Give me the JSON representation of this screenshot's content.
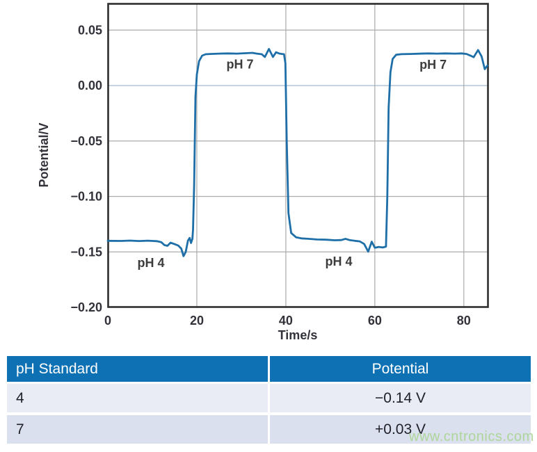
{
  "chart_data": {
    "type": "line",
    "title": "",
    "xlabel": "Time/s",
    "ylabel": "Potential/V",
    "xlim": [
      0,
      85.5
    ],
    "ylim": [
      -0.2,
      0.074
    ],
    "grid": true,
    "legend": "none",
    "x_ticks": [
      {
        "value": 0,
        "label": "0"
      },
      {
        "value": 20,
        "label": "20"
      },
      {
        "value": 40,
        "label": "40"
      },
      {
        "value": 60,
        "label": "60"
      },
      {
        "value": 80,
        "label": "80"
      }
    ],
    "y_ticks": [
      {
        "value": 0.05,
        "label": "0.05"
      },
      {
        "value": 0.0,
        "label": "0.00"
      },
      {
        "value": -0.05,
        "label": "−0.05"
      },
      {
        "value": -0.1,
        "label": "−0.10"
      },
      {
        "value": -0.15,
        "label": "−0.15"
      },
      {
        "value": -0.2,
        "label": "−0.20"
      }
    ],
    "series": [
      {
        "name": "electrode-potential",
        "color": "#1e6fa8",
        "points": [
          [
            0,
            -0.14
          ],
          [
            3,
            -0.1401
          ],
          [
            5,
            -0.1398
          ],
          [
            7,
            -0.1402
          ],
          [
            9,
            -0.1399
          ],
          [
            11,
            -0.1403
          ],
          [
            12,
            -0.1412
          ],
          [
            12.7,
            -0.1438
          ],
          [
            13.4,
            -0.1445
          ],
          [
            14.1,
            -0.1417
          ],
          [
            15.0,
            -0.143
          ],
          [
            15.8,
            -0.1442
          ],
          [
            16.5,
            -0.147
          ],
          [
            17.0,
            -0.1538
          ],
          [
            17.5,
            -0.15
          ],
          [
            18.0,
            -0.1398
          ],
          [
            18.4,
            -0.1374
          ],
          [
            18.7,
            -0.142
          ],
          [
            19.0,
            -0.1382
          ],
          [
            19.15,
            -0.13
          ],
          [
            19.4,
            -0.09
          ],
          [
            19.7,
            -0.01
          ],
          [
            20.0,
            0.01
          ],
          [
            20.5,
            0.022
          ],
          [
            21.2,
            0.027
          ],
          [
            22.0,
            0.0282
          ],
          [
            23,
            0.0285
          ],
          [
            25,
            0.0288
          ],
          [
            27,
            0.029
          ],
          [
            29,
            0.0288
          ],
          [
            31,
            0.0292
          ],
          [
            32.5,
            0.0295
          ],
          [
            33.5,
            0.0288
          ],
          [
            34.6,
            0.0282
          ],
          [
            35.3,
            0.0258
          ],
          [
            36.2,
            0.033
          ],
          [
            37.1,
            0.0258
          ],
          [
            37.8,
            0.03
          ],
          [
            38.6,
            0.0288
          ],
          [
            39.6,
            0.0282
          ],
          [
            39.9,
            0.02
          ],
          [
            40.2,
            -0.05
          ],
          [
            40.6,
            -0.115
          ],
          [
            41.2,
            -0.133
          ],
          [
            42.3,
            -0.1368
          ],
          [
            43.5,
            -0.1378
          ],
          [
            45,
            -0.1382
          ],
          [
            47,
            -0.1388
          ],
          [
            49,
            -0.139
          ],
          [
            51,
            -0.1395
          ],
          [
            52.5,
            -0.1393
          ],
          [
            53.4,
            -0.1382
          ],
          [
            54.3,
            -0.1393
          ],
          [
            55.5,
            -0.14
          ],
          [
            56.6,
            -0.1405
          ],
          [
            57.6,
            -0.1428
          ],
          [
            58.5,
            -0.1498
          ],
          [
            59.3,
            -0.1408
          ],
          [
            60.0,
            -0.1462
          ],
          [
            60.9,
            -0.1455
          ],
          [
            61.8,
            -0.146
          ],
          [
            62.5,
            -0.1452
          ],
          [
            62.8,
            -0.1
          ],
          [
            63.1,
            -0.02
          ],
          [
            63.5,
            0.012
          ],
          [
            64.0,
            0.024
          ],
          [
            64.8,
            0.0278
          ],
          [
            66,
            0.0283
          ],
          [
            68,
            0.0285
          ],
          [
            70,
            0.0287
          ],
          [
            72,
            0.029
          ],
          [
            74,
            0.0288
          ],
          [
            76,
            0.029
          ],
          [
            78,
            0.0288
          ],
          [
            79.5,
            0.029
          ],
          [
            80.6,
            0.0285
          ],
          [
            81.6,
            0.0268
          ],
          [
            82.2,
            0.0256
          ],
          [
            83.2,
            0.032
          ],
          [
            84.0,
            0.0262
          ],
          [
            84.7,
            0.0148
          ],
          [
            85.3,
            0.018
          ]
        ]
      }
    ],
    "annotations": [
      {
        "text": "pH 7",
        "t": 29.7,
        "v": 0.0155
      },
      {
        "text": "pH 4",
        "t": 9.7,
        "v": -0.1635
      },
      {
        "text": "pH 4",
        "t": 51.9,
        "v": -0.1625
      },
      {
        "text": "pH 7",
        "t": 73.1,
        "v": 0.015
      }
    ]
  },
  "colors": {
    "curve": "#1e6fa8",
    "grid": "#ababab",
    "zero_line": "#b9c9da",
    "frame": "#2e2e2e",
    "header_bg": "#0e71b4",
    "row_odd_bg": "#e9ecf5",
    "row_even_bg": "#dbe0ee"
  },
  "table": {
    "headers": [
      "pH Standard",
      "Potential"
    ],
    "rows": [
      {
        "ph": "4",
        "potential": "−0.14 V"
      },
      {
        "ph": "7",
        "potential": "+0.03 V"
      }
    ]
  },
  "watermark": {
    "text": "www.cntronics.com",
    "color": "#aed59a"
  }
}
